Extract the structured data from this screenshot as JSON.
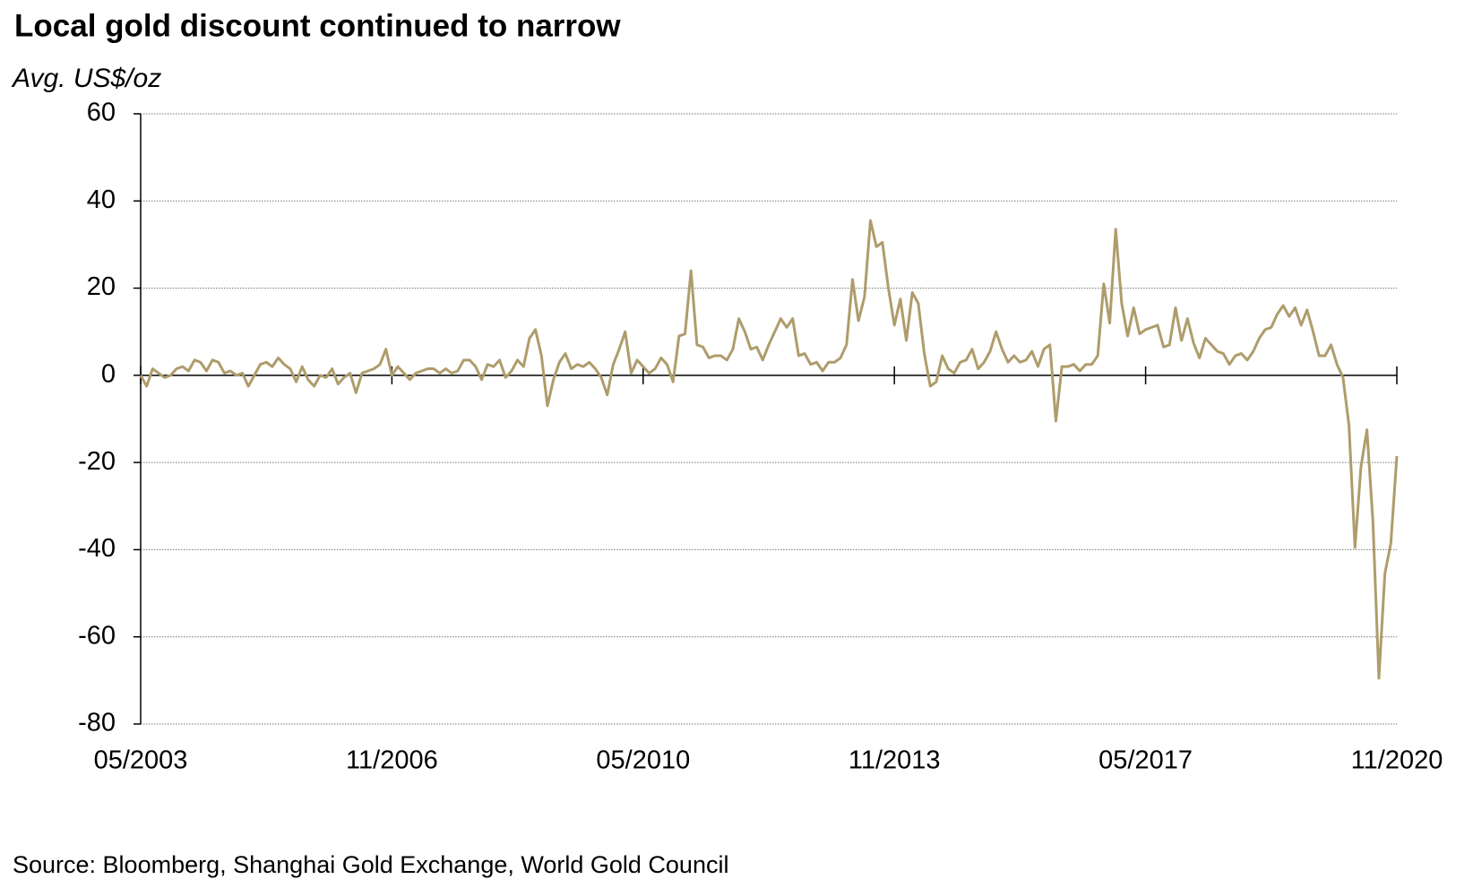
{
  "chart_data": {
    "type": "line",
    "title": "Local gold discount continued to narrow",
    "y_label": "Avg. US$/oz",
    "source": "Source: Bloomberg, Shanghai Gold Exchange, World Gold Council",
    "color": "#ae9c6b",
    "grid": true,
    "xlim": [
      "05/2003",
      "11/2020"
    ],
    "xticks": [
      "05/2003",
      "11/2006",
      "05/2010",
      "11/2013",
      "05/2017",
      "11/2020"
    ],
    "ylim": [
      -80,
      60
    ],
    "yticks": [
      -80,
      -60,
      -40,
      -20,
      0,
      20,
      40,
      60
    ],
    "x": [
      "05/2003",
      "06/2003",
      "07/2003",
      "08/2003",
      "09/2003",
      "10/2003",
      "11/2003",
      "12/2003",
      "01/2004",
      "02/2004",
      "03/2004",
      "04/2004",
      "05/2004",
      "06/2004",
      "07/2004",
      "08/2004",
      "09/2004",
      "10/2004",
      "11/2004",
      "12/2004",
      "01/2005",
      "02/2005",
      "03/2005",
      "04/2005",
      "05/2005",
      "06/2005",
      "07/2005",
      "08/2005",
      "09/2005",
      "10/2005",
      "11/2005",
      "12/2005",
      "01/2006",
      "02/2006",
      "03/2006",
      "04/2006",
      "05/2006",
      "06/2006",
      "07/2006",
      "08/2006",
      "09/2006",
      "10/2006",
      "11/2006",
      "12/2006",
      "01/2007",
      "02/2007",
      "03/2007",
      "04/2007",
      "05/2007",
      "06/2007",
      "07/2007",
      "08/2007",
      "09/2007",
      "10/2007",
      "11/2007",
      "12/2007",
      "01/2008",
      "02/2008",
      "03/2008",
      "04/2008",
      "05/2008",
      "06/2008",
      "07/2008",
      "08/2008",
      "09/2008",
      "10/2008",
      "11/2008",
      "12/2008",
      "01/2009",
      "02/2009",
      "03/2009",
      "04/2009",
      "05/2009",
      "06/2009",
      "07/2009",
      "08/2009",
      "09/2009",
      "10/2009",
      "11/2009",
      "12/2009",
      "01/2010",
      "02/2010",
      "03/2010",
      "04/2010",
      "05/2010",
      "06/2010",
      "07/2010",
      "08/2010",
      "09/2010",
      "10/2010",
      "11/2010",
      "12/2010",
      "01/2011",
      "02/2011",
      "03/2011",
      "04/2011",
      "05/2011",
      "06/2011",
      "07/2011",
      "08/2011",
      "09/2011",
      "10/2011",
      "11/2011",
      "12/2011",
      "01/2012",
      "02/2012",
      "03/2012",
      "04/2012",
      "05/2012",
      "06/2012",
      "07/2012",
      "08/2012",
      "09/2012",
      "10/2012",
      "11/2012",
      "12/2012",
      "01/2013",
      "02/2013",
      "03/2013",
      "04/2013",
      "05/2013",
      "06/2013",
      "07/2013",
      "08/2013",
      "09/2013",
      "10/2013",
      "11/2013",
      "12/2013",
      "01/2014",
      "02/2014",
      "03/2014",
      "04/2014",
      "05/2014",
      "06/2014",
      "07/2014",
      "08/2014",
      "09/2014",
      "10/2014",
      "11/2014",
      "12/2014",
      "01/2015",
      "02/2015",
      "03/2015",
      "04/2015",
      "05/2015",
      "06/2015",
      "07/2015",
      "08/2015",
      "09/2015",
      "10/2015",
      "11/2015",
      "12/2015",
      "01/2016",
      "02/2016",
      "03/2016",
      "04/2016",
      "05/2016",
      "06/2016",
      "07/2016",
      "08/2016",
      "09/2016",
      "10/2016",
      "11/2016",
      "12/2016",
      "01/2017",
      "02/2017",
      "03/2017",
      "04/2017",
      "05/2017",
      "06/2017",
      "07/2017",
      "08/2017",
      "09/2017",
      "10/2017",
      "11/2017",
      "12/2017",
      "01/2018",
      "02/2018",
      "03/2018",
      "04/2018",
      "05/2018",
      "06/2018",
      "07/2018",
      "08/2018",
      "09/2018",
      "10/2018",
      "11/2018",
      "12/2018",
      "01/2019",
      "02/2019",
      "03/2019",
      "04/2019",
      "05/2019",
      "06/2019",
      "07/2019",
      "08/2019",
      "09/2019",
      "10/2019",
      "11/2019",
      "12/2019",
      "01/2020",
      "02/2020",
      "03/2020",
      "04/2020",
      "05/2020",
      "06/2020",
      "07/2020",
      "08/2020",
      "09/2020",
      "10/2020",
      "11/2020"
    ],
    "values": [
      0,
      -2.5,
      1.5,
      0.5,
      -0.5,
      0,
      1.5,
      2,
      1,
      3.5,
      3,
      1,
      3.5,
      3,
      0.5,
      1,
      0,
      0.5,
      -2.5,
      0,
      2.5,
      3,
      2,
      4,
      2.5,
      1.5,
      -1.5,
      2,
      -1,
      -2.5,
      0,
      -0.5,
      1.5,
      -2,
      -0.5,
      0.5,
      -4,
      0.5,
      1,
      1.5,
      2.5,
      6,
      0,
      2,
      0.5,
      -1,
      0.5,
      1,
      1.5,
      1.5,
      0.5,
      1.5,
      0.5,
      1,
      3.5,
      3.5,
      2,
      -1,
      2.5,
      2,
      3.5,
      -0.5,
      1,
      3.5,
      2,
      8.5,
      10.5,
      4.5,
      -7,
      -1,
      3,
      5,
      1.5,
      2.5,
      2,
      3,
      1.5,
      -0.5,
      -4.5,
      2.5,
      6,
      10,
      0.5,
      3.5,
      2,
      0.5,
      1.5,
      4,
      2.5,
      -1.5,
      9,
      9.5,
      24,
      7,
      6.5,
      4,
      4.5,
      4.5,
      3.5,
      6,
      13,
      10,
      6,
      6.5,
      3.5,
      7,
      10,
      13,
      11,
      13,
      4.5,
      5,
      2.5,
      3,
      1,
      3,
      3,
      4,
      7,
      22,
      12.5,
      18,
      35.5,
      29.5,
      30.5,
      20,
      11.5,
      17.5,
      8,
      19,
      16.5,
      5,
      -2.5,
      -1.5,
      4.5,
      1.5,
      0.5,
      3,
      3.5,
      6,
      1.5,
      3,
      5.5,
      10,
      6,
      3,
      4.5,
      3,
      3.5,
      5.5,
      2,
      6,
      7,
      -10.5,
      2,
      2,
      2.5,
      1,
      2.5,
      2.5,
      4.5,
      21,
      12,
      33.5,
      16.5,
      9,
      15.5,
      9.5,
      10.5,
      11,
      11.5,
      6.5,
      7,
      15.5,
      8,
      13,
      7.5,
      4,
      8.5,
      7,
      5.5,
      5,
      2.5,
      4.5,
      5,
      3.5,
      5.5,
      8.5,
      10.5,
      11,
      14,
      16,
      13.5,
      15.5,
      11.5,
      15,
      10,
      4.5,
      4.5,
      7,
      2.5,
      -0.5,
      -11.5,
      -39.5,
      -21,
      -12.5,
      -33.5,
      -69.5,
      -45.5,
      -38.5,
      -18.5
    ]
  }
}
